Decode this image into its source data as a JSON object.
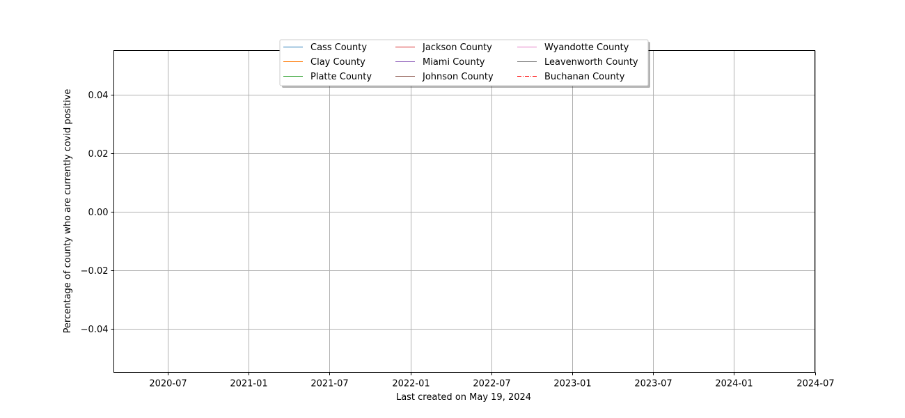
{
  "chart_data": {
    "type": "line",
    "title": "",
    "xlabel": "Last created on May 19, 2024",
    "ylabel": "Percentage of county who are currently covid positive",
    "x_ticks": [
      "2020-07",
      "2021-01",
      "2021-07",
      "2022-01",
      "2022-07",
      "2023-01",
      "2023-07",
      "2024-01",
      "2024-07"
    ],
    "y_ticks": [
      "0.04",
      "0.02",
      "0.00",
      "−0.02",
      "−0.04"
    ],
    "y_tick_values": [
      0.04,
      0.02,
      0.0,
      -0.02,
      -0.04
    ],
    "ylim": [
      -0.055,
      0.055
    ],
    "xlim": [
      "2020-03",
      "2024-07"
    ],
    "grid": true,
    "legend_position": "top-center",
    "series": [
      {
        "name": "Cass County",
        "color": "#1f77b4",
        "style": "solid",
        "x": [],
        "values": []
      },
      {
        "name": "Clay County",
        "color": "#ff7f0e",
        "style": "solid",
        "x": [],
        "values": []
      },
      {
        "name": "Platte County",
        "color": "#2ca02c",
        "style": "solid",
        "x": [],
        "values": []
      },
      {
        "name": "Jackson County",
        "color": "#d62728",
        "style": "solid",
        "x": [],
        "values": []
      },
      {
        "name": "Miami County",
        "color": "#9467bd",
        "style": "solid",
        "x": [],
        "values": []
      },
      {
        "name": "Johnson County",
        "color": "#8c564b",
        "style": "solid",
        "x": [],
        "values": []
      },
      {
        "name": "Wyandotte County",
        "color": "#e377c2",
        "style": "solid",
        "x": [],
        "values": []
      },
      {
        "name": "Leavenworth County",
        "color": "#7f7f7f",
        "style": "solid",
        "x": [],
        "values": []
      },
      {
        "name": "Buchanan County",
        "color": "#ff0000",
        "style": "dashdot",
        "x": [],
        "values": []
      }
    ]
  }
}
